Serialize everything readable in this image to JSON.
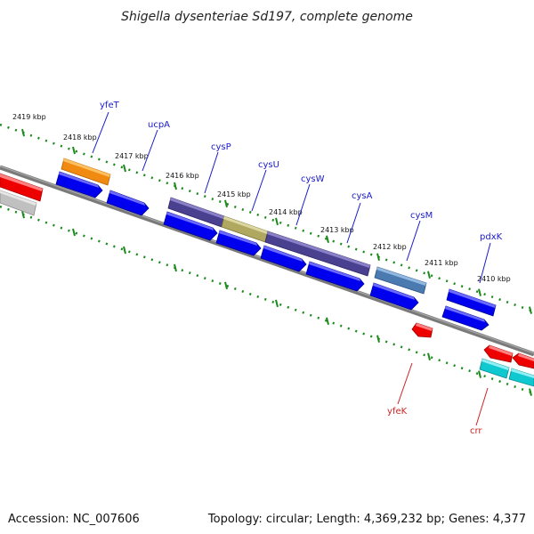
{
  "title": "Shigella dysenteriae Sd197, complete genome",
  "footer": {
    "accession": "Accession: NC_007606",
    "summary": "Topology: circular; Length: 4,369,232 bp; Genes: 4,377"
  },
  "scale_labels": [
    "2419 kbp",
    "2418 kbp",
    "2417 kbp",
    "2416 kbp",
    "2415 kbp",
    "2414 kbp",
    "2413 kbp",
    "2412 kbp",
    "2411 kbp",
    "2410 kbp"
  ],
  "genes_forward": [
    "yfeT",
    "ucpA",
    "cysP",
    "cysU",
    "cysW",
    "cysA",
    "cysM",
    "pdxK"
  ],
  "genes_reverse": [
    "yfeK",
    "crr"
  ],
  "colors": {
    "backbone": "#7a7a7a",
    "scale_ticks": "#1a8a1a",
    "cds": "#0000ee",
    "reverse_cds": "#ee0000",
    "label_blue": "#1a1acc",
    "label_red": "#cc2222",
    "orange_feature": "#f08a10",
    "purple_feature": "#4a4090",
    "olive_feature": "#b0a860",
    "steel_feature": "#4a7ab0",
    "cyan_feature": "#10c8d0",
    "grey_feature": "#c0c0c0"
  }
}
